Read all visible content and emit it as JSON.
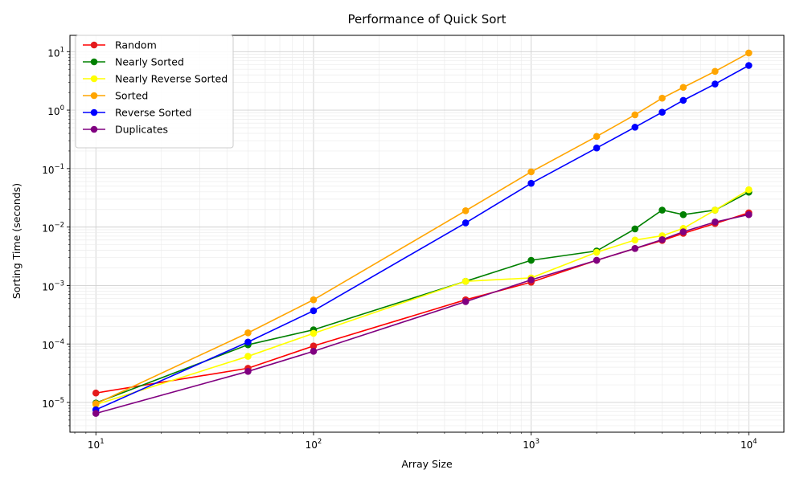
{
  "chart_data": {
    "type": "line",
    "title": "Performance of Quick Sort",
    "xlabel": "Array Size",
    "ylabel": "Sorting Time (seconds)",
    "xscale": "log",
    "yscale": "log",
    "xlim": [
      7.6,
      14500
    ],
    "ylim": [
      3.1e-06,
      19
    ],
    "grid": true,
    "legend_position": "top-left",
    "x_ticks": [
      {
        "value": 10,
        "base": "10",
        "exp": "1"
      },
      {
        "value": 100,
        "base": "10",
        "exp": "2"
      },
      {
        "value": 1000,
        "base": "10",
        "exp": "3"
      },
      {
        "value": 10000,
        "base": "10",
        "exp": "4"
      }
    ],
    "y_ticks": [
      {
        "value": 1e-05,
        "base": "10",
        "exp": "−5"
      },
      {
        "value": 0.0001,
        "base": "10",
        "exp": "−4"
      },
      {
        "value": 0.001,
        "base": "10",
        "exp": "−3"
      },
      {
        "value": 0.01,
        "base": "10",
        "exp": "−2"
      },
      {
        "value": 0.1,
        "base": "10",
        "exp": "−1"
      },
      {
        "value": 1,
        "base": "10",
        "exp": "0"
      },
      {
        "value": 10,
        "base": "10",
        "exp": "1"
      }
    ],
    "x": [
      10,
      50,
      100,
      500,
      1000,
      2000,
      3000,
      4000,
      5000,
      7000,
      10000
    ],
    "series": [
      {
        "name": "Random",
        "color": "#ff0000",
        "marker_color": "#e41a1c",
        "values": [
          1.45e-05,
          3.85e-05,
          9.25e-05,
          0.00057,
          0.00114,
          0.0027,
          0.0043,
          0.0059,
          0.0078,
          0.0115,
          0.0175
        ]
      },
      {
        "name": "Nearly Sorted",
        "color": "#008000",
        "marker_color": "#008000",
        "values": [
          9.8e-06,
          9.7e-05,
          0.000175,
          0.00118,
          0.0027,
          0.0039,
          0.0093,
          0.0195,
          0.0163,
          0.0195,
          0.0395
        ]
      },
      {
        "name": "Nearly Reverse Sorted",
        "color": "#ffff00",
        "marker_color": "#ffff00",
        "values": [
          9.2e-06,
          6.15e-05,
          0.000152,
          0.00118,
          0.00135,
          0.0037,
          0.006,
          0.0071,
          0.0095,
          0.0195,
          0.0435
        ]
      },
      {
        "name": "Sorted",
        "color": "#ffa500",
        "marker_color": "#ffa500",
        "values": [
          9.5e-06,
          0.000155,
          0.00057,
          0.019,
          0.088,
          0.355,
          0.83,
          1.6,
          2.45,
          4.6,
          9.5
        ]
      },
      {
        "name": "Reverse Sorted",
        "color": "#0000ff",
        "marker_color": "#0000ff",
        "values": [
          7.5e-06,
          0.000108,
          0.00037,
          0.0118,
          0.056,
          0.225,
          0.51,
          0.92,
          1.47,
          2.8,
          5.8
        ]
      },
      {
        "name": "Duplicates",
        "color": "#800080",
        "marker_color": "#800080",
        "values": [
          6.5e-06,
          3.4e-05,
          7.5e-05,
          0.00053,
          0.00125,
          0.0027,
          0.0043,
          0.0061,
          0.0083,
          0.0122,
          0.0163
        ]
      }
    ]
  }
}
